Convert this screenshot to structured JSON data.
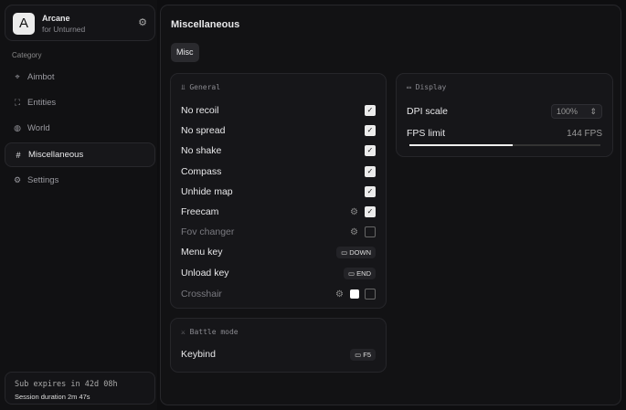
{
  "brand": {
    "logo": "A",
    "title": "Arcane",
    "subtitle": "for Unturned"
  },
  "sidebar": {
    "category_label": "Category",
    "items": [
      {
        "label": "Aimbot",
        "icon": "crosshair-icon"
      },
      {
        "label": "Entities",
        "icon": "entities-icon"
      },
      {
        "label": "World",
        "icon": "globe-icon"
      },
      {
        "label": "Miscellaneous",
        "icon": "grid-icon",
        "active": true
      },
      {
        "label": "Settings",
        "icon": "gear-icon"
      }
    ]
  },
  "subscription": {
    "expires": "Sub expires in 42d 08h",
    "session": "Session duration 2m 47s"
  },
  "main": {
    "title": "Miscellaneous",
    "tab": "Misc"
  },
  "general": {
    "title": "General",
    "rows": [
      {
        "label": "No recoil",
        "checked": true
      },
      {
        "label": "No spread",
        "checked": true
      },
      {
        "label": "No shake",
        "checked": true
      },
      {
        "label": "Compass",
        "checked": true
      },
      {
        "label": "Unhide map",
        "checked": true
      },
      {
        "label": "Freecam",
        "checked": true,
        "settings": true
      },
      {
        "label": "Fov changer",
        "checked": false,
        "settings": true
      },
      {
        "label": "Menu key",
        "key": "DOWN"
      },
      {
        "label": "Unload key",
        "key": "END"
      },
      {
        "label": "Crosshair",
        "checked": false,
        "settings": true,
        "color": "#ffffff"
      }
    ]
  },
  "battle": {
    "title": "Battle mode",
    "keybind_label": "Keybind",
    "key": "F5"
  },
  "display": {
    "title": "Display",
    "dpi_label": "DPI scale",
    "dpi_value": "100%",
    "fps_label": "FPS limit",
    "fps_value": "144 FPS",
    "fps_slider_fraction": 0.54
  }
}
